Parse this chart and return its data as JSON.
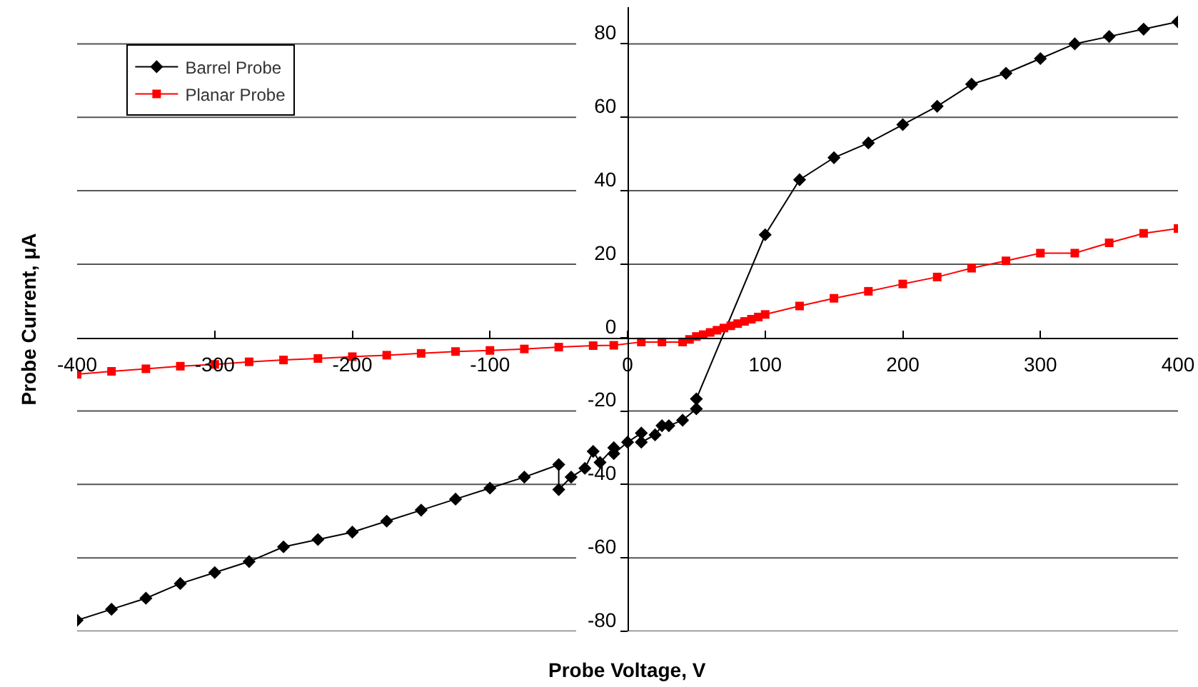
{
  "chart_data": {
    "type": "line",
    "xlabel": "Probe Voltage, V",
    "ylabel": "Probe Current, μA",
    "xlim": [
      -400,
      400
    ],
    "xticks": [
      -400,
      -300,
      -200,
      -100,
      0,
      100,
      200,
      300,
      400
    ],
    "ylim": [
      -80,
      90
    ],
    "yticks": [
      -80,
      -60,
      -40,
      -20,
      0,
      20,
      40,
      60,
      80
    ],
    "grid": "y",
    "legend": "top left",
    "line_style": "solid",
    "series": [
      {
        "name": "Barrel Probe",
        "color": "#000000",
        "marker": "diamond",
        "x": [
          -400,
          -375,
          -350,
          -325,
          -300,
          -275,
          -250,
          -225,
          -200,
          -175,
          -150,
          -125,
          -100,
          -75,
          -50,
          -50,
          -41,
          -31,
          -25,
          -20,
          -10,
          -10,
          0,
          10,
          10,
          20,
          25,
          30,
          40,
          50,
          50,
          100,
          125,
          150,
          175,
          200,
          225,
          250,
          275,
          300,
          325,
          350,
          375,
          400
        ],
        "values": [
          -77,
          -74,
          -71,
          -67,
          -64,
          -61,
          -57,
          -55,
          -53,
          -50,
          -47,
          -44,
          -41,
          -38,
          -34.6,
          -41.4,
          -38,
          -35.6,
          -31,
          -34,
          -30,
          -31.6,
          -28.5,
          -26,
          -28.5,
          -26.5,
          -24,
          -24,
          -22.5,
          -19.4,
          -16.7,
          28,
          43,
          49,
          53,
          58,
          63,
          69,
          72,
          76,
          80,
          82,
          84,
          86
        ]
      },
      {
        "name": "Planar Probe",
        "color": "#ff0000",
        "marker": "square",
        "x": [
          -400,
          -375,
          -350,
          -325,
          -300,
          -275,
          -250,
          -225,
          -200,
          -175,
          -150,
          -125,
          -100,
          -75,
          -50,
          -25,
          -10,
          10,
          25,
          40,
          45,
          50,
          55,
          60,
          65,
          70,
          75,
          80,
          85,
          90,
          95,
          100,
          125,
          150,
          175,
          200,
          225,
          250,
          275,
          300,
          325,
          350,
          375,
          400
        ],
        "values": [
          -10,
          -9.2,
          -8.5,
          -7.8,
          -7.3,
          -6.6,
          -6.1,
          -5.7,
          -5.2,
          -4.8,
          -4.3,
          -3.8,
          -3.5,
          -3.1,
          -2.6,
          -2.2,
          -2.1,
          -1.2,
          -1.2,
          -1.2,
          -0.5,
          0.3,
          0.8,
          1.4,
          2,
          2.6,
          3.2,
          3.8,
          4.4,
          5,
          5.6,
          6.3,
          8.6,
          10.7,
          12.6,
          14.6,
          16.5,
          18.9,
          20.9,
          23,
          23,
          25.8,
          28.4,
          29.7
        ]
      }
    ]
  }
}
